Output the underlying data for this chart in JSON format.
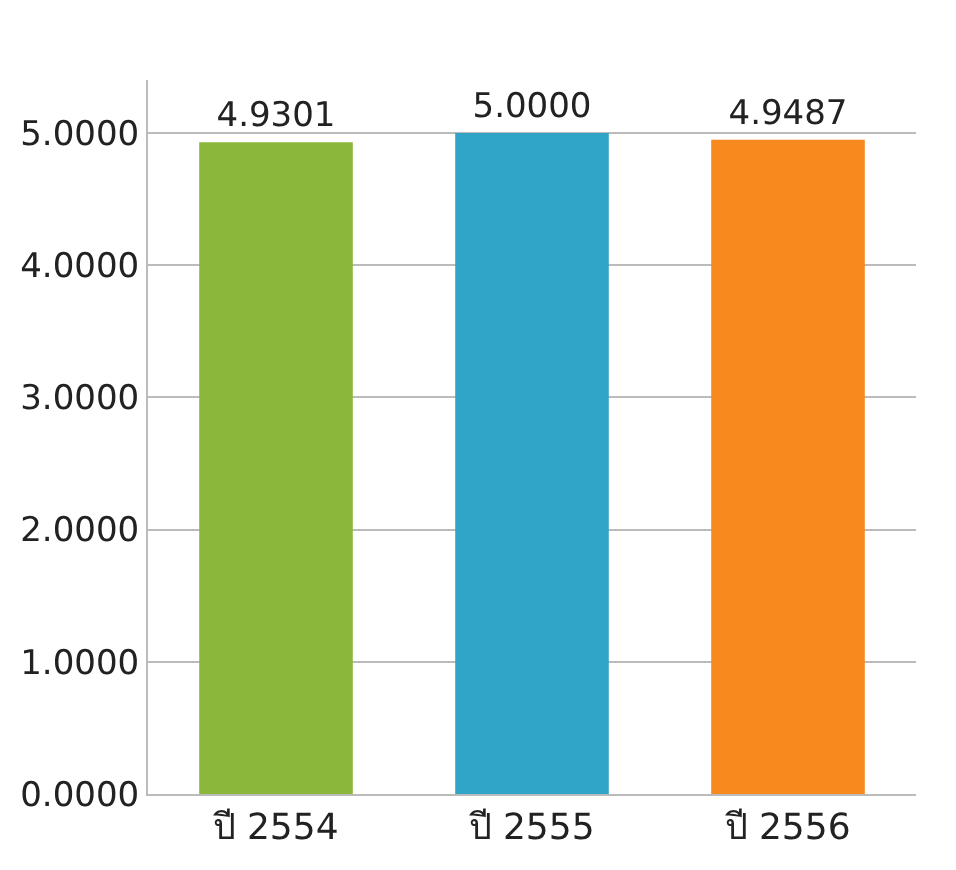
{
  "chart_data": {
    "type": "bar",
    "categories": [
      "ปี 2554",
      "ปี 2555",
      "ปี 2556"
    ],
    "values": [
      4.9301,
      5.0,
      4.9487
    ],
    "colors": [
      "#8bb83a",
      "#31a5c8",
      "#f7891f"
    ],
    "value_labels": [
      "4.9301",
      "5.0000",
      "4.9487"
    ],
    "ylim": [
      0,
      5.4
    ],
    "yticks": [
      {
        "value": 0,
        "label": "0.0000"
      },
      {
        "value": 1,
        "label": "1.0000"
      },
      {
        "value": 2,
        "label": "2.0000"
      },
      {
        "value": 3,
        "label": "3.0000"
      },
      {
        "value": 4,
        "label": "4.0000"
      },
      {
        "value": 5,
        "label": "5.0000"
      }
    ],
    "grid": "y"
  }
}
